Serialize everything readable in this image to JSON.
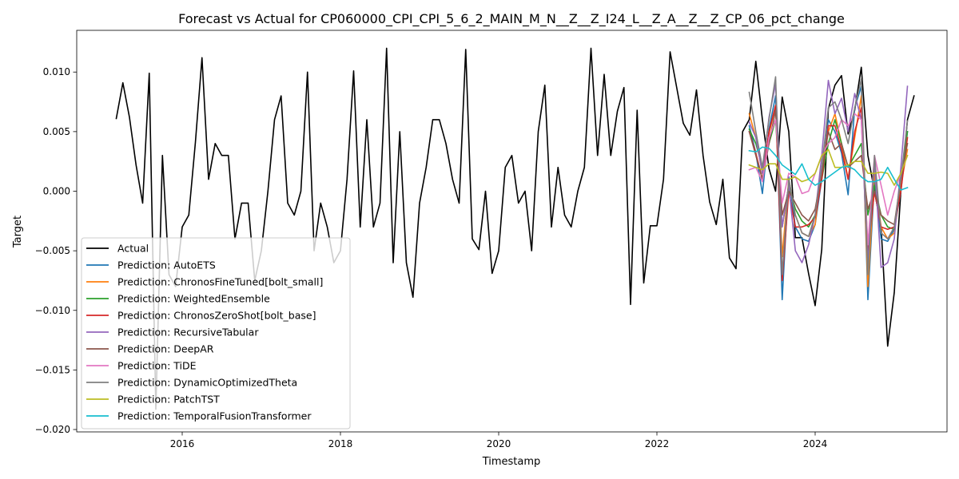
{
  "chart_data": {
    "type": "line",
    "title": "Forecast vs Actual for CP060000_CPI_CPI_5_6_2_MAIN_M_N__Z__Z_I24_L__Z_A__Z__Z_CP_06_pct_change",
    "xlabel": "Timestamp",
    "ylabel": "Target",
    "xlim": [
      "2014-09-01",
      "2025-09-01"
    ],
    "ylim": [
      -0.0202,
      0.0135
    ],
    "x_ticks": [
      "2016",
      "2018",
      "2020",
      "2022",
      "2024"
    ],
    "y_ticks": [
      -0.02,
      -0.015,
      -0.01,
      -0.005,
      0.0,
      0.005,
      0.01
    ],
    "y_tick_labels": [
      "−0.020",
      "−0.015",
      "−0.010",
      "−0.005",
      "0.000",
      "0.005",
      "0.010"
    ],
    "grid": false,
    "legend_position": "lower-left",
    "actual": {
      "name": "Actual",
      "color": "#000000",
      "start": "2015-03",
      "values": [
        0.0061,
        0.0091,
        0.0062,
        0.0022,
        -0.001,
        0.0099,
        -0.0183,
        0.003,
        -0.007,
        -0.008,
        -0.003,
        -0.002,
        0.0041,
        0.0112,
        0.001,
        0.004,
        0.003,
        0.003,
        -0.004,
        -0.001,
        -0.001,
        -0.0075,
        -0.005,
        0.0,
        0.006,
        0.008,
        -0.001,
        -0.002,
        0.0,
        0.01,
        -0.005,
        -0.001,
        -0.003,
        -0.006,
        -0.005,
        0.001,
        0.0101,
        -0.003,
        0.006,
        -0.003,
        -0.001,
        0.012,
        -0.006,
        0.005,
        -0.006,
        -0.0089,
        -0.001,
        0.002,
        0.006,
        0.006,
        0.004,
        0.001,
        -0.001,
        0.0119,
        -0.004,
        -0.0049,
        0.0,
        -0.0069,
        -0.005,
        0.002,
        0.003,
        -0.001,
        0.0,
        -0.005,
        0.005,
        0.0089,
        -0.003,
        0.002,
        -0.002,
        -0.003,
        0.0,
        0.002,
        0.012,
        0.003,
        0.0098,
        0.003,
        0.0067,
        0.0087,
        -0.0095,
        0.0068,
        -0.0077,
        -0.0029,
        -0.0029,
        0.001,
        0.0117,
        0.0087,
        0.0057,
        0.0047,
        0.0085,
        0.003,
        -0.0009,
        -0.0028,
        0.001,
        -0.0056,
        -0.0065,
        0.005,
        0.006,
        0.0109,
        0.006,
        0.0019,
        0.0,
        0.0079,
        0.005,
        -0.0039,
        -0.0039,
        -0.0069,
        -0.0096,
        -0.0049,
        0.0069,
        0.0089,
        0.0097,
        0.0048,
        0.0068,
        0.0104,
        0.003,
        0.0,
        -0.003,
        -0.013,
        -0.0085,
        0.0,
        0.006,
        0.008
      ]
    },
    "forecast_start": "2023-03",
    "series": [
      {
        "name": "Prediction: AutoETS",
        "color": "#1f77b4",
        "values": [
          0.0055,
          0.0032,
          -0.0002,
          0.0052,
          0.008,
          -0.0091,
          0.0012,
          -0.003,
          -0.004,
          -0.0042,
          -0.0028,
          0.001,
          0.006,
          0.005,
          0.0032,
          -0.0003,
          0.007,
          0.0088,
          -0.0091,
          0.001,
          -0.004,
          -0.0042,
          -0.0032,
          0.0,
          0.005
        ]
      },
      {
        "name": "Prediction: ChronosFineTuned[bolt_small]",
        "color": "#ff7f0e",
        "values": [
          0.0065,
          0.0045,
          0.0015,
          0.0048,
          0.0072,
          -0.0055,
          0.001,
          -0.002,
          -0.0035,
          -0.0038,
          -0.0028,
          0.002,
          0.005,
          0.0065,
          0.004,
          0.001,
          0.0045,
          0.008,
          -0.008,
          0.0015,
          -0.003,
          -0.004,
          -0.0035,
          0.0005,
          0.0035
        ]
      },
      {
        "name": "Prediction: WeightedEnsemble",
        "color": "#2ca02c",
        "values": [
          0.0052,
          0.004,
          0.002,
          0.004,
          0.006,
          -0.003,
          0.0005,
          -0.0015,
          -0.0025,
          -0.003,
          -0.002,
          0.001,
          0.004,
          0.006,
          0.004,
          0.002,
          0.003,
          0.004,
          -0.002,
          0.0005,
          -0.002,
          -0.003,
          -0.0032,
          0.001,
          0.005
        ]
      },
      {
        "name": "Prediction: ChronosZeroShot[bolt_base]",
        "color": "#d62728",
        "values": [
          0.005,
          0.0032,
          0.001,
          0.005,
          0.0072,
          -0.0075,
          0.0,
          -0.003,
          -0.003,
          -0.0028,
          -0.0022,
          0.001,
          0.0055,
          0.0055,
          0.0035,
          0.001,
          0.005,
          0.007,
          -0.005,
          0.0,
          -0.003,
          -0.0032,
          -0.003,
          0.0,
          0.0045
        ]
      },
      {
        "name": "Prediction: RecursiveTabular",
        "color": "#9467bd",
        "values": [
          0.0058,
          0.0045,
          0.0015,
          0.0062,
          0.009,
          -0.003,
          0.0005,
          -0.005,
          -0.006,
          -0.0045,
          -0.002,
          0.003,
          0.0093,
          0.0065,
          0.0078,
          0.005,
          0.0082,
          0.006,
          -0.006,
          0.0025,
          -0.0064,
          -0.006,
          -0.004,
          0.002,
          0.0088
        ]
      },
      {
        "name": "Prediction: DeepAR",
        "color": "#8c564b",
        "values": [
          0.005,
          0.003,
          0.001,
          0.004,
          0.0068,
          -0.002,
          0.0,
          -0.001,
          -0.002,
          -0.0025,
          -0.0015,
          0.0015,
          0.005,
          0.0035,
          0.004,
          0.002,
          0.0025,
          0.003,
          -0.0015,
          0.0,
          -0.002,
          -0.0025,
          -0.0028,
          0.001,
          0.004
        ]
      },
      {
        "name": "Prediction: TiDE",
        "color": "#e377c2",
        "values": [
          0.0018,
          0.002,
          0.0008,
          0.0045,
          0.006,
          -0.001,
          0.0015,
          0.0012,
          -0.0002,
          0.0,
          0.0015,
          0.003,
          0.004,
          0.0045,
          0.006,
          0.0055,
          0.0065,
          0.006,
          -0.0045,
          0.003,
          0.0005,
          -0.002,
          0.0,
          0.0015,
          0.003
        ]
      },
      {
        "name": "Prediction: DynamicOptimizedTheta",
        "color": "#7f7f7f",
        "values": [
          0.0083,
          0.005,
          0.002,
          0.006,
          0.0096,
          -0.007,
          0.001,
          -0.002,
          -0.0035,
          -0.0038,
          -0.002,
          0.002,
          0.007,
          0.0075,
          0.006,
          0.004,
          0.007,
          0.0094,
          -0.007,
          0.003,
          -0.0035,
          -0.004,
          -0.003,
          0.001,
          0.0059
        ]
      },
      {
        "name": "Prediction: PatchTST",
        "color": "#bcbd22",
        "values": [
          0.0022,
          0.002,
          0.0018,
          0.0023,
          0.0023,
          0.001,
          0.001,
          0.0012,
          0.0008,
          0.001,
          0.0015,
          0.003,
          0.0035,
          0.002,
          0.002,
          0.0022,
          0.0025,
          0.0025,
          0.0015,
          0.0015,
          0.0016,
          0.0015,
          0.0005,
          0.0015,
          0.003
        ]
      },
      {
        "name": "Prediction: TemporalFusionTransformer",
        "color": "#17becf",
        "values": [
          0.0034,
          0.0033,
          0.0037,
          0.0036,
          0.003,
          0.0022,
          0.0018,
          0.0014,
          0.0023,
          0.001,
          0.0005,
          0.0008,
          0.0012,
          0.0016,
          0.002,
          0.0021,
          0.0018,
          0.0012,
          0.0008,
          0.0008,
          0.001,
          0.002,
          0.001,
          0.0001,
          0.0003
        ]
      }
    ]
  }
}
